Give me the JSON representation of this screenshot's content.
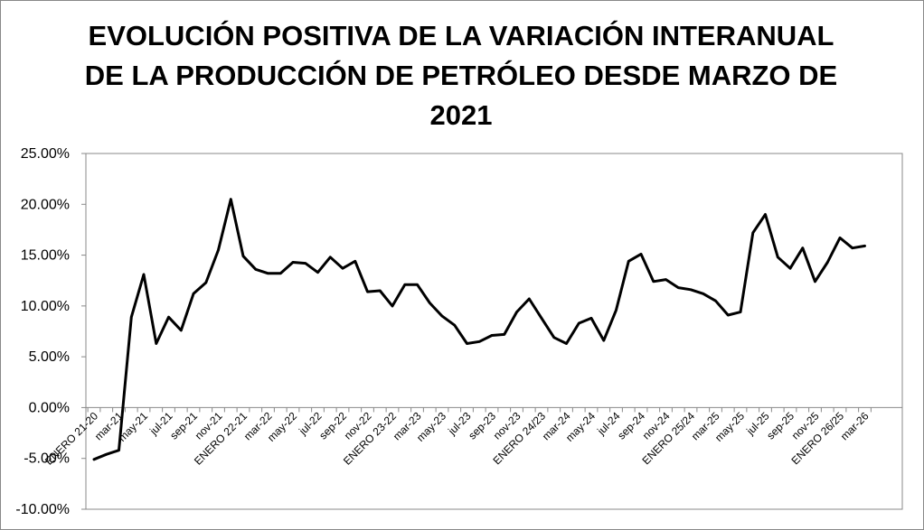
{
  "chart_data": {
    "type": "line",
    "title_lines": [
      "EVOLUCIÓN POSITIVA DE LA VARIACIÓN INTERANUAL",
      "DE LA PRODUCCIÓN DE PETRÓLEO DESDE MARZO DE",
      "2021"
    ],
    "xlabel": "",
    "ylabel": "",
    "ylim": [
      -0.1,
      0.25
    ],
    "yticks": [
      -0.1,
      -0.05,
      0.0,
      0.05,
      0.1,
      0.15,
      0.2,
      0.25
    ],
    "ytick_labels": [
      "-10.00%",
      "-5.00%",
      "0.00%",
      "5.00%",
      "10.00%",
      "15.00%",
      "20.00%",
      "25.00%"
    ],
    "grid": false,
    "legend": "none",
    "line_color": "#000000",
    "x_labels": [
      {
        "index": 0,
        "label": "ENERO 21-20"
      },
      {
        "index": 2,
        "label": "mar-21"
      },
      {
        "index": 4,
        "label": "may-21"
      },
      {
        "index": 6,
        "label": "jul-21"
      },
      {
        "index": 8,
        "label": "sep-21"
      },
      {
        "index": 10,
        "label": "nov-21"
      },
      {
        "index": 12,
        "label": "ENERO 22-21"
      },
      {
        "index": 14,
        "label": "mar-22"
      },
      {
        "index": 16,
        "label": "may-22"
      },
      {
        "index": 18,
        "label": "jul-22"
      },
      {
        "index": 20,
        "label": "sep-22"
      },
      {
        "index": 22,
        "label": "nov-22"
      },
      {
        "index": 24,
        "label": "ENERO 23-22"
      },
      {
        "index": 26,
        "label": "mar-23"
      },
      {
        "index": 28,
        "label": "may-23"
      },
      {
        "index": 30,
        "label": "jul-23"
      },
      {
        "index": 32,
        "label": "sep-23"
      },
      {
        "index": 34,
        "label": "nov-23"
      },
      {
        "index": 36,
        "label": "ENERO 24/23"
      },
      {
        "index": 38,
        "label": "mar-24"
      },
      {
        "index": 40,
        "label": "may-24"
      },
      {
        "index": 42,
        "label": "jul-24"
      },
      {
        "index": 44,
        "label": "sep-24"
      },
      {
        "index": 46,
        "label": "nov-24"
      },
      {
        "index": 48,
        "label": "ENERO 25/24"
      },
      {
        "index": 50,
        "label": "mar-25"
      },
      {
        "index": 52,
        "label": "may-25"
      },
      {
        "index": 54,
        "label": "jul-25"
      },
      {
        "index": 56,
        "label": "sep-25"
      },
      {
        "index": 58,
        "label": "nov-25"
      },
      {
        "index": 60,
        "label": "ENERO 26/25"
      },
      {
        "index": 62,
        "label": "mar-26"
      }
    ],
    "values": [
      -0.051,
      -0.046,
      -0.042,
      0.089,
      0.131,
      0.063,
      0.089,
      0.076,
      0.112,
      0.123,
      0.155,
      0.205,
      0.149,
      0.136,
      0.132,
      0.132,
      0.143,
      0.142,
      0.133,
      0.148,
      0.137,
      0.144,
      0.114,
      0.115,
      0.1,
      0.121,
      0.121,
      0.103,
      0.09,
      0.081,
      0.063,
      0.065,
      0.071,
      0.072,
      0.094,
      0.107,
      0.088,
      0.069,
      0.063,
      0.083,
      0.088,
      0.066,
      0.096,
      0.144,
      0.151,
      0.124,
      0.126,
      0.118,
      0.116,
      0.112,
      0.105,
      0.091,
      0.094,
      0.172,
      0.19,
      0.148,
      0.137,
      0.157,
      0.124,
      0.143,
      0.167,
      0.157,
      0.159
    ]
  }
}
